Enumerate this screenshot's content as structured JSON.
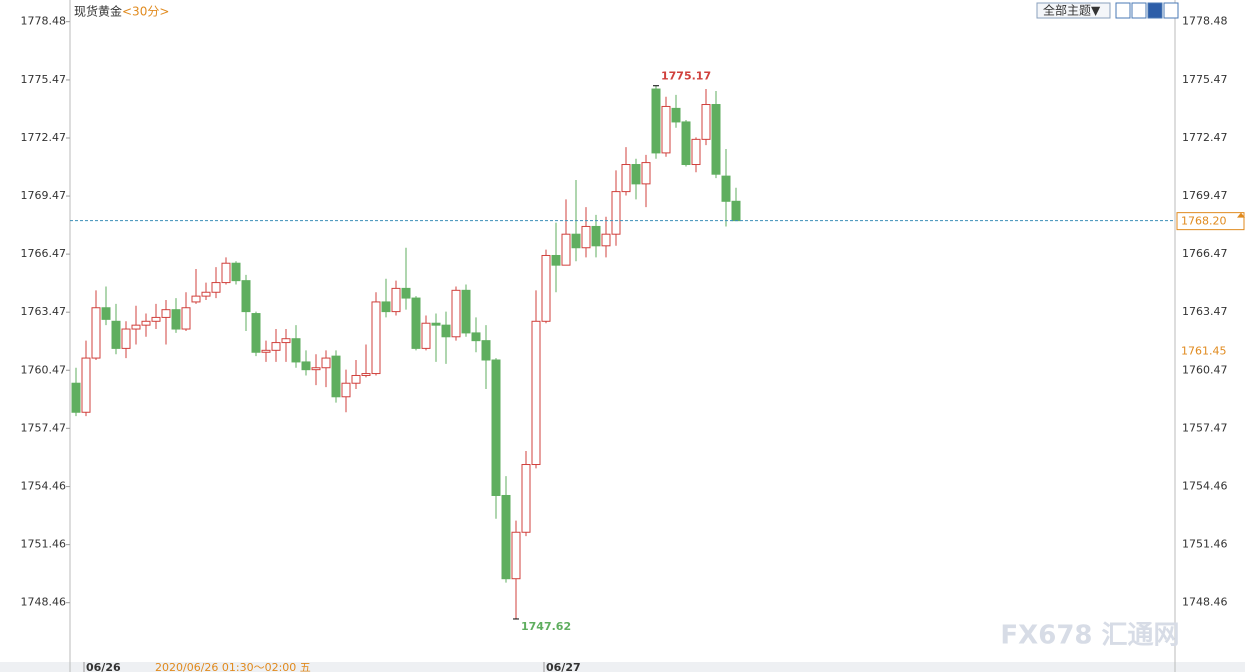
{
  "chart_data": {
    "type": "candlestick",
    "title": "现货黄金",
    "period": "<30分>",
    "theme_button": "全部主题▼",
    "up_color": "#d0403c",
    "down_color": "#5fae5f",
    "categories": [
      null,
      "06/26",
      null,
      null,
      null,
      null,
      null,
      null,
      null,
      null,
      null,
      null,
      null,
      null,
      null,
      null,
      null,
      null,
      null,
      null,
      null,
      null,
      null,
      null,
      null,
      null,
      null,
      null,
      null,
      null,
      null,
      null,
      null,
      null,
      null,
      null,
      null,
      null,
      null,
      null,
      null,
      null,
      null,
      null,
      null,
      null,
      null,
      "06/27",
      null,
      null,
      null,
      null,
      null,
      null,
      null,
      null,
      null,
      null,
      null,
      null,
      null,
      null,
      null,
      null,
      null,
      null,
      null
    ],
    "open": [
      1759.8,
      1758.3,
      1761.1,
      1763.7,
      1763.0,
      1761.6,
      1762.6,
      1762.8,
      1763.0,
      1763.2,
      1763.6,
      1762.6,
      1764.0,
      1764.3,
      1764.5,
      1765.0,
      1766.0,
      1765.1,
      1763.4,
      1761.4,
      1761.5,
      1761.9,
      1762.1,
      1760.9,
      1760.5,
      1760.6,
      1761.2,
      1759.1,
      1759.8,
      1760.2,
      1760.3,
      1764.0,
      1763.5,
      1764.7,
      1764.2,
      1761.6,
      1762.9,
      1762.8,
      1762.2,
      1764.6,
      1762.4,
      1762.0,
      1761.0,
      1754.0,
      1749.7,
      1752.1,
      1755.6,
      1763.0,
      1766.4,
      1765.9,
      1767.5,
      1766.8,
      1767.9,
      1766.9,
      1767.5,
      1769.7,
      1771.1,
      1770.1,
      1775.0,
      1771.7,
      1774.0,
      1773.3,
      1771.1,
      1772.4,
      1774.2,
      1770.5,
      1769.2
    ],
    "high": [
      1760.6,
      1762.0,
      1764.6,
      1764.8,
      1763.9,
      1763.0,
      1763.8,
      1763.4,
      1763.9,
      1764.1,
      1764.2,
      1764.5,
      1765.7,
      1765.0,
      1765.8,
      1766.3,
      1766.1,
      1765.4,
      1763.5,
      1762.0,
      1762.6,
      1762.6,
      1762.8,
      1761.5,
      1761.3,
      1761.5,
      1761.5,
      1760.5,
      1761.0,
      1761.8,
      1764.5,
      1765.2,
      1765.1,
      1766.8,
      1764.3,
      1763.3,
      1763.4,
      1763.5,
      1764.8,
      1764.9,
      1763.2,
      1762.8,
      1761.1,
      1755.0,
      1752.7,
      1756.3,
      1764.6,
      1766.7,
      1768.1,
      1769.3,
      1770.3,
      1768.9,
      1768.5,
      1768.4,
      1770.8,
      1772.0,
      1771.4,
      1771.6,
      1775.17,
      1774.6,
      1774.7,
      1773.4,
      1772.5,
      1775.0,
      1774.9,
      1771.9,
      1769.9
    ],
    "low": [
      1758.1,
      1758.1,
      1761.0,
      1762.8,
      1761.3,
      1761.1,
      1761.8,
      1762.2,
      1762.6,
      1761.8,
      1762.4,
      1762.5,
      1763.9,
      1764.1,
      1764.2,
      1764.9,
      1764.9,
      1762.5,
      1761.2,
      1760.9,
      1760.9,
      1760.9,
      1760.6,
      1760.2,
      1759.7,
      1759.6,
      1758.8,
      1758.3,
      1759.5,
      1760.1,
      1760.2,
      1763.2,
      1763.3,
      1763.6,
      1761.5,
      1761.5,
      1760.9,
      1760.8,
      1762.0,
      1762.2,
      1761.4,
      1759.5,
      1752.8,
      1749.5,
      1747.62,
      1751.9,
      1755.4,
      1762.9,
      1764.5,
      1765.9,
      1766.1,
      1766.3,
      1766.3,
      1766.3,
      1766.9,
      1769.5,
      1769.3,
      1768.9,
      1771.4,
      1771.5,
      1773.0,
      1771.0,
      1770.7,
      1772.1,
      1770.4,
      1767.9,
      1768.2
    ],
    "close": [
      1758.3,
      1761.1,
      1763.7,
      1763.1,
      1761.6,
      1762.6,
      1762.8,
      1763.0,
      1763.2,
      1763.6,
      1762.6,
      1763.7,
      1764.3,
      1764.5,
      1765.0,
      1766.0,
      1765.1,
      1763.5,
      1761.4,
      1761.5,
      1761.9,
      1762.1,
      1760.9,
      1760.5,
      1760.6,
      1761.1,
      1759.1,
      1759.8,
      1760.2,
      1760.3,
      1764.0,
      1763.5,
      1764.7,
      1764.2,
      1761.6,
      1762.9,
      1762.8,
      1762.2,
      1764.6,
      1762.4,
      1762.0,
      1761.0,
      1754.0,
      1749.7,
      1752.1,
      1755.6,
      1763.0,
      1766.4,
      1765.9,
      1767.5,
      1766.8,
      1767.9,
      1766.9,
      1767.5,
      1769.7,
      1771.1,
      1770.1,
      1771.2,
      1771.7,
      1774.1,
      1773.3,
      1771.1,
      1772.4,
      1774.2,
      1770.6,
      1769.2,
      1768.2
    ],
    "ylim": [
      1745.5,
      1779.6
    ],
    "yticks": [
      1778.48,
      1775.47,
      1772.47,
      1769.47,
      1766.47,
      1763.47,
      1760.47,
      1757.47,
      1754.46,
      1751.46,
      1748.46
    ],
    "max": 1775.17,
    "min": 1747.62,
    "last_price": {
      "value": 1768.2,
      "label": "1768.20"
    },
    "marker_price": 1761.45,
    "cursor_label": "2020/06/26 01:30～02:00 五",
    "watermark": "FX678 汇通网"
  }
}
